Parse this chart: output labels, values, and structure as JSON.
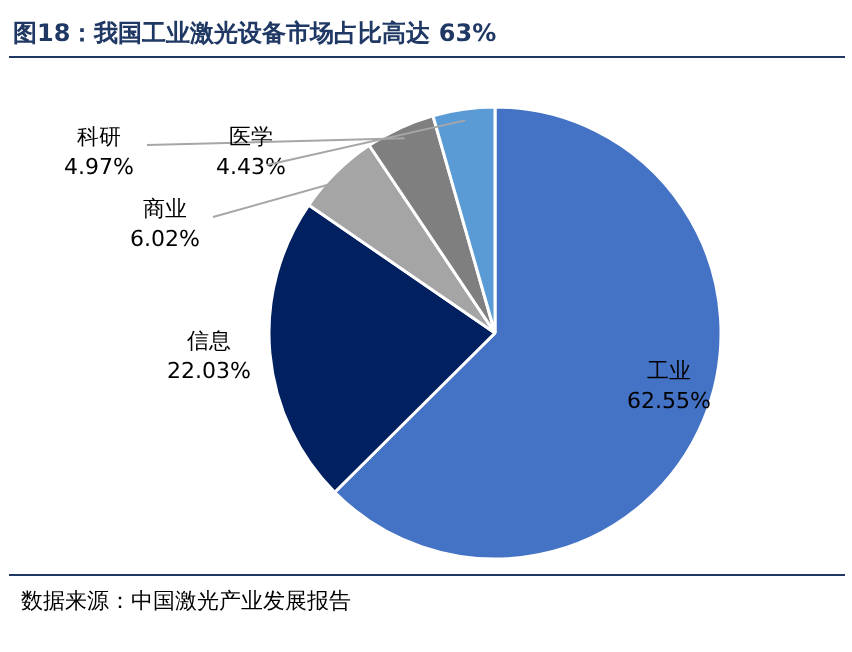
{
  "chart_data": {
    "type": "pie",
    "title": "图18：我国工业激光设备市场占比高达 63%",
    "categories": [
      "工业",
      "信息",
      "商业",
      "科研",
      "医学"
    ],
    "values": [
      62.55,
      22.03,
      6.02,
      4.97,
      4.43
    ],
    "value_labels": [
      "62.55%",
      "22.03%",
      "6.02%",
      "4.97%",
      "4.43%"
    ],
    "colors": [
      "#4472c4",
      "#002060",
      "#a5a5a5",
      "#7f7f7f",
      "#5b9bd5"
    ],
    "annotations": [
      "数据来源：中国激光产业发展报告"
    ]
  }
}
